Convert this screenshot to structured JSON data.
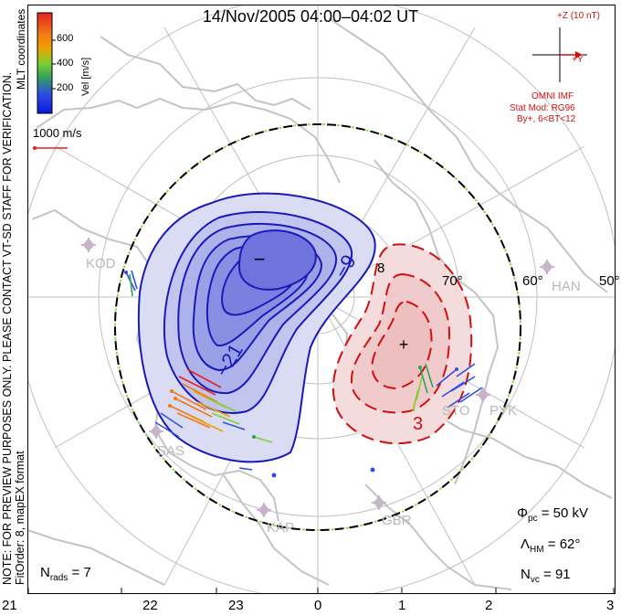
{
  "title": "14/Nov/2005 04:00–04:02 UT",
  "colorbar": {
    "label": "Vel [m/s]",
    "ticks": [
      "600",
      "400",
      "200"
    ],
    "colors": [
      "#e82020",
      "#f07818",
      "#f0a000",
      "#80d030",
      "#30a060",
      "#3050e0",
      "#0818e0"
    ]
  },
  "coord_system": "MLT coordinates",
  "vector_scale_label": "1000 m/s",
  "imf": {
    "bz_label": "+Z (10 nT)",
    "by_label": "+Y",
    "source": "OMNI IMF",
    "model_line1": "Stat Mod: RG96",
    "model_line2": "By+, 6<BT<12"
  },
  "notes": {
    "preview": "NOTE: FOR PREVIEW PURPOSES ONLY. PLEASE CONTACT VT-SD STAFF FOR VERIFICATION.",
    "fit": "FitOrder: 8, mapEX format"
  },
  "stats": {
    "phi_label": "Φ",
    "phi_sub": "pc",
    "phi_value": "= 50 kV",
    "lambda_label": "Λ",
    "lambda_sub": "HM",
    "lambda_value": "= 62°",
    "nvc_label": "N",
    "nvc_sub": "vc",
    "nvc_value": "= 91",
    "nrads_label": "N",
    "nrads_sub": "rads",
    "nrads_value": "= 7"
  },
  "mlt_ticks": [
    "21",
    "22",
    "23",
    "0",
    "1",
    "2",
    "3"
  ],
  "latitude_labels": [
    "50°",
    "60°",
    "70°",
    "8"
  ],
  "contour_labels": [
    "−9",
    "−21",
    "3"
  ],
  "potential_markers": {
    "min": "−",
    "max": "+"
  },
  "stations": [
    "KOD",
    "SAS",
    "KAP",
    "GBR",
    "STO",
    "PYK",
    "HAN"
  ],
  "colors": {
    "negative_line": "#1a1ab8",
    "positive_line": "#d01010",
    "coast": "#c4c4c4",
    "grid": "#b8b8b8",
    "station": "#c8b4c8"
  }
}
